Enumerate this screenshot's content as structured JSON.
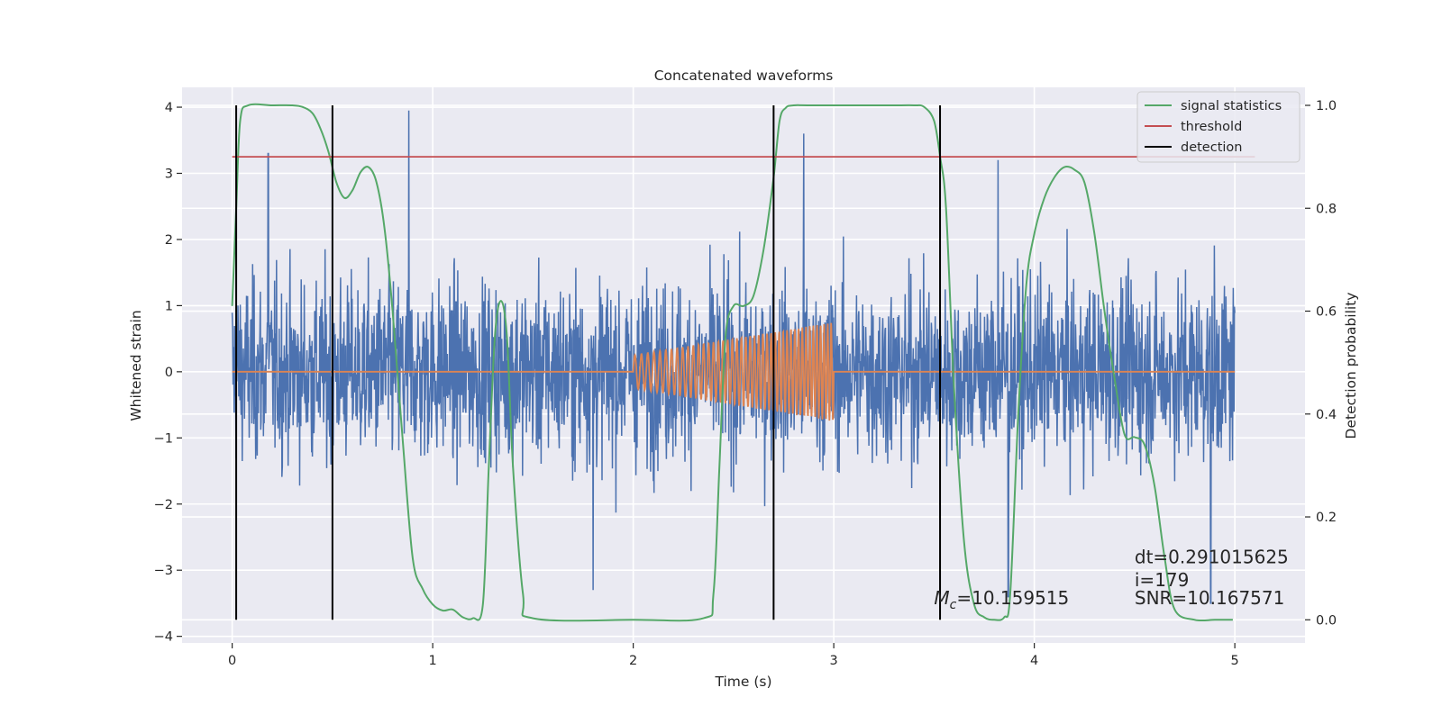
{
  "chart_data": {
    "type": "line",
    "title": "Concatenated waveforms",
    "xlabel": "Time (s)",
    "ylabel_left": "Whitened strain",
    "ylabel_right": "Detection probability",
    "xlim": [
      -0.25,
      5.35
    ],
    "ylim_left": [
      -4.1,
      4.3
    ],
    "ylim_right": [
      -0.045,
      1.035
    ],
    "x_ticks": [
      0,
      1,
      2,
      3,
      4,
      5
    ],
    "x_tick_labels": [
      "0",
      "1",
      "2",
      "3",
      "4",
      "5"
    ],
    "y_left_ticks": [
      4,
      3,
      2,
      1,
      0,
      -1,
      -2,
      -3,
      -4
    ],
    "y_left_tick_labels": [
      "4",
      "3",
      "2",
      "1",
      "0",
      "−1",
      "−2",
      "−3",
      "−4"
    ],
    "y_right_ticks": [
      1.0,
      0.8,
      0.6,
      0.4,
      0.2,
      0.0
    ],
    "y_right_tick_labels": [
      "1.0",
      "0.8",
      "0.6",
      "0.4",
      "0.2",
      "0.0"
    ],
    "grid": true,
    "legend_position": "top-right",
    "legend": [
      {
        "label": "signal statistics",
        "color": "#55a868"
      },
      {
        "label": "threshold",
        "color": "#c44e52"
      },
      {
        "label": "detection",
        "color": "#000000"
      }
    ],
    "series": [
      {
        "kind": "noise",
        "axis": "left",
        "color": "#4c72b0",
        "x_range": [
          0,
          5
        ],
        "typical_envelope": [
          -2.5,
          2.5
        ],
        "peaks": [
          [
            0.18,
            3.3
          ],
          [
            0.88,
            3.95
          ],
          [
            2.85,
            3.6
          ],
          [
            3.82,
            3.2
          ],
          [
            3.87,
            -3.4
          ],
          [
            4.88,
            -3.5
          ],
          [
            1.8,
            -3.3
          ]
        ]
      },
      {
        "kind": "chirp",
        "axis": "left",
        "color": "#dd8452",
        "x_range": [
          0,
          5
        ],
        "chirp_start": 2.0,
        "chirp_end": 3.0,
        "amplitude_start": 0.25,
        "amplitude_end": 0.75
      },
      {
        "name": "signal statistics",
        "axis": "right",
        "color": "#55a868",
        "x": [
          0,
          0.02,
          0.04,
          0.08,
          0.2,
          0.3,
          0.35,
          0.4,
          0.44,
          0.48,
          0.52,
          0.56,
          0.6,
          0.64,
          0.68,
          0.72,
          0.76,
          0.8,
          0.85,
          0.9,
          0.95,
          1.0,
          1.05,
          1.1,
          1.15,
          1.2,
          1.25,
          1.28,
          1.31,
          1.34,
          1.37,
          1.4,
          1.45,
          1.5,
          2.0,
          2.35,
          2.4,
          2.43,
          2.46,
          2.5,
          2.55,
          2.6,
          2.65,
          2.7,
          2.73,
          2.76,
          2.8,
          2.9,
          3.3,
          3.4,
          3.45,
          3.5,
          3.53,
          3.56,
          3.6,
          3.65,
          3.7,
          3.75,
          3.8,
          3.85,
          3.88,
          3.92,
          3.96,
          4.0,
          4.05,
          4.1,
          4.15,
          4.2,
          4.25,
          4.3,
          4.35,
          4.4,
          4.45,
          4.5,
          4.55,
          4.6,
          4.65,
          4.7,
          4.8,
          4.9,
          4.99
        ],
        "y": [
          0.61,
          0.8,
          0.97,
          1.0,
          1.0,
          1.0,
          0.997,
          0.985,
          0.955,
          0.91,
          0.85,
          0.82,
          0.835,
          0.87,
          0.88,
          0.85,
          0.76,
          0.6,
          0.35,
          0.12,
          0.06,
          0.03,
          0.018,
          0.02,
          0.005,
          0.003,
          0.03,
          0.3,
          0.55,
          0.62,
          0.55,
          0.3,
          0.05,
          0.003,
          0.0,
          0.003,
          0.05,
          0.3,
          0.55,
          0.61,
          0.61,
          0.63,
          0.72,
          0.86,
          0.97,
          0.995,
          1.0,
          1.0,
          1.0,
          1.0,
          0.997,
          0.97,
          0.9,
          0.8,
          0.45,
          0.15,
          0.03,
          0.005,
          0.0,
          0.005,
          0.05,
          0.4,
          0.65,
          0.75,
          0.82,
          0.86,
          0.88,
          0.875,
          0.85,
          0.75,
          0.6,
          0.47,
          0.36,
          0.355,
          0.34,
          0.26,
          0.12,
          0.02,
          0.0,
          0.0,
          0.0
        ]
      },
      {
        "name": "threshold",
        "axis": "right",
        "color": "#c44e52",
        "x": [
          0,
          5.1
        ],
        "y": [
          0.9,
          0.9
        ]
      }
    ],
    "detections": {
      "color": "#000000",
      "x": [
        0.02,
        0.5,
        2.7,
        3.53
      ],
      "y_range": [
        0.0,
        1.0
      ]
    },
    "annotations": [
      {
        "kind": "mc",
        "symbol": "M",
        "subscript": "c",
        "text": "=10.159515",
        "x": 3.5,
        "y_right": 0.03
      },
      {
        "kind": "plain",
        "text": "dt=0.291015625",
        "x": 4.5,
        "y_right": 0.11
      },
      {
        "kind": "plain",
        "text": " i=179",
        "x": 4.5,
        "y_right": 0.065
      },
      {
        "kind": "plain",
        "text": "SNR=10.167571",
        "x": 4.5,
        "y_right": 0.03
      }
    ]
  }
}
